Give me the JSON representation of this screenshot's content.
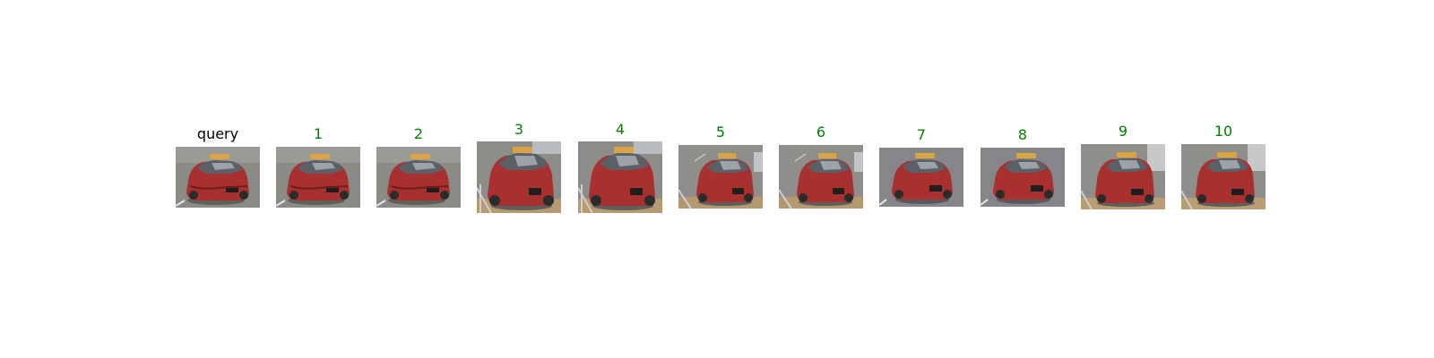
{
  "gallery": {
    "query_label": "query",
    "query_label_color": "#000000",
    "match_label_color": "#008000",
    "results": [
      {
        "rank": "1",
        "correct": true
      },
      {
        "rank": "2",
        "correct": true
      },
      {
        "rank": "3",
        "correct": true
      },
      {
        "rank": "4",
        "correct": true
      },
      {
        "rank": "5",
        "correct": true
      },
      {
        "rank": "6",
        "correct": true
      },
      {
        "rank": "7",
        "correct": true
      },
      {
        "rank": "8",
        "correct": true
      },
      {
        "rank": "9",
        "correct": true
      },
      {
        "rank": "10",
        "correct": true
      }
    ]
  },
  "colors": {
    "car_body": "#a8302f",
    "car_shadow": "#6e1d1c",
    "roof_sign": "#d9a441",
    "road": "#8a8a86",
    "plate": "#1f1f1f"
  }
}
